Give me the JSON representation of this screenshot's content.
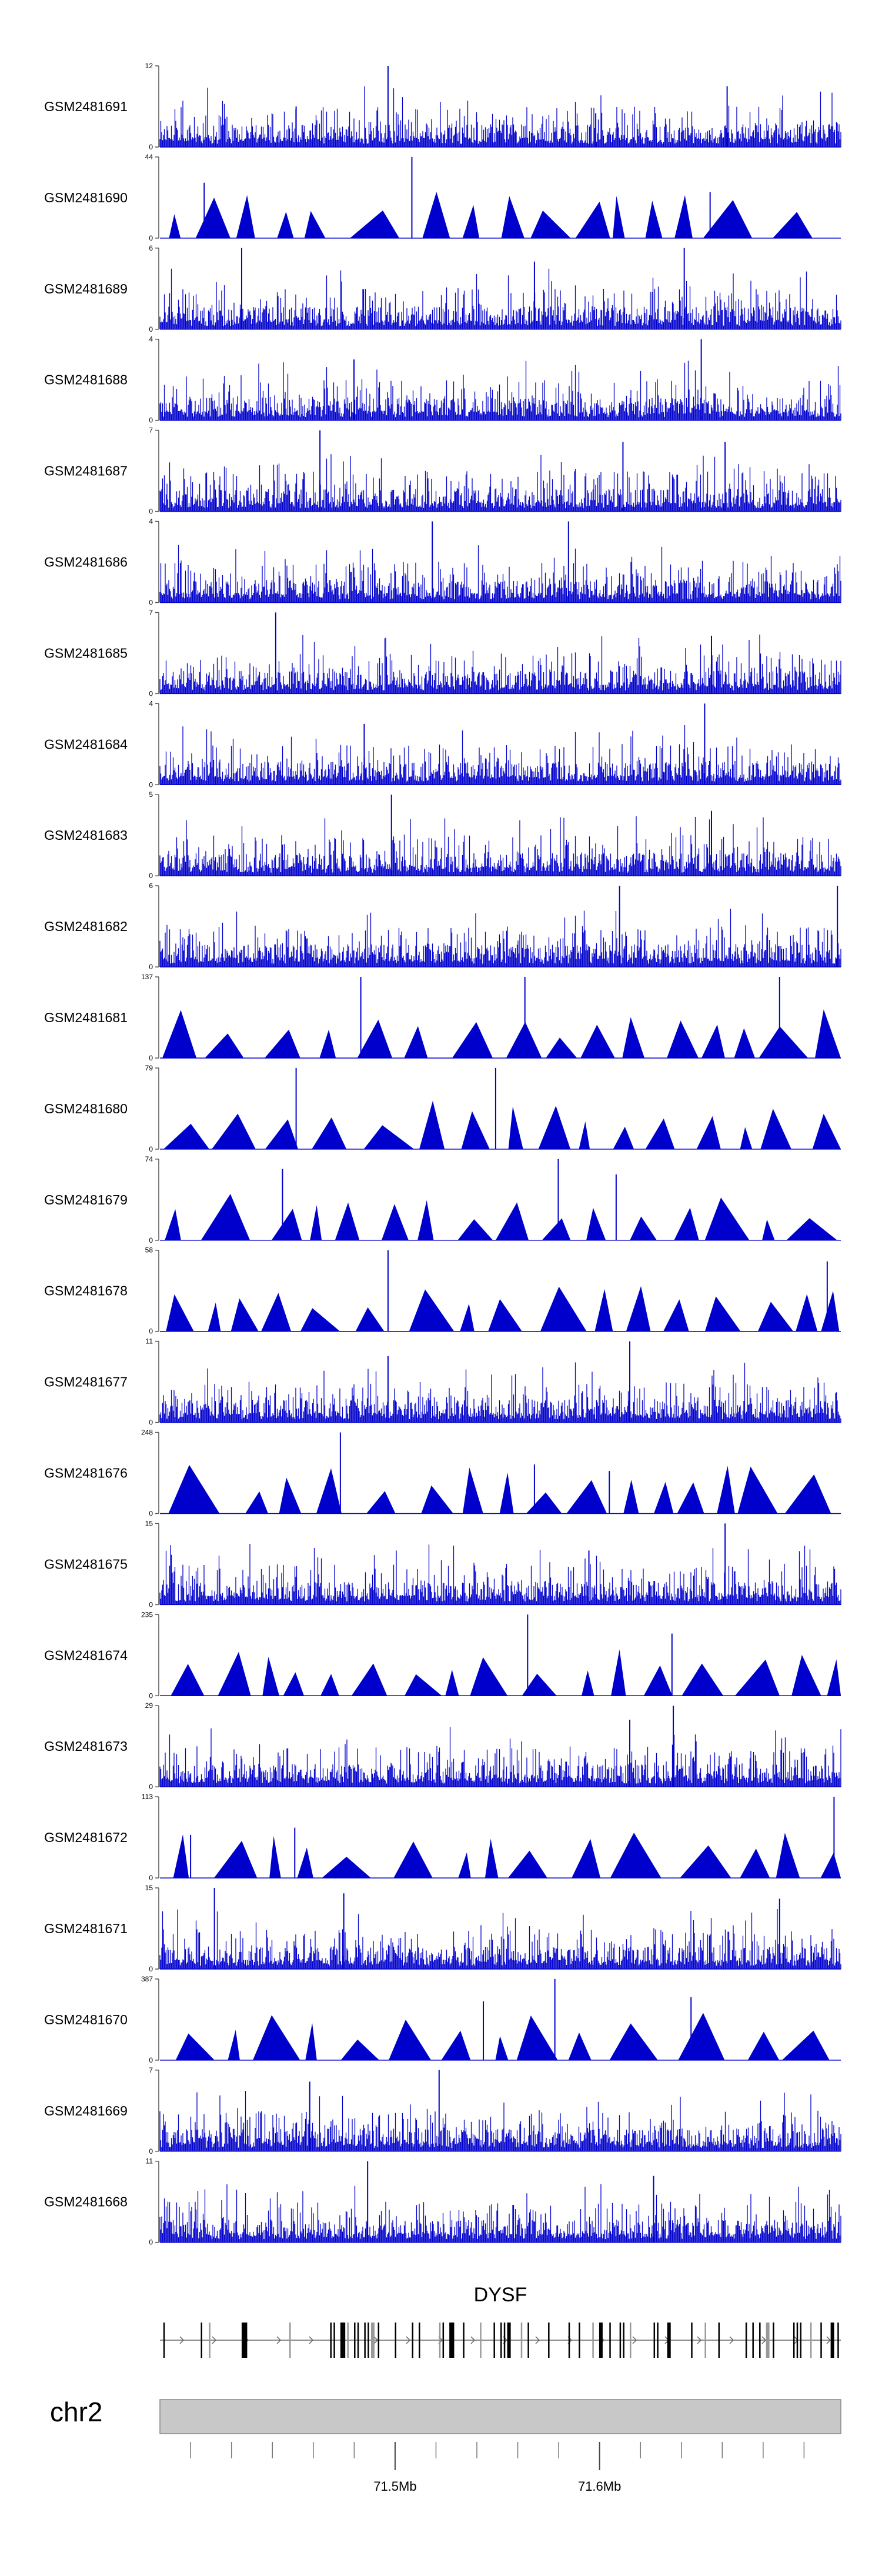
{
  "chart_data": {
    "type": "area",
    "title": "",
    "xlabel": "",
    "ylabel": "",
    "chromosome": "chr2",
    "gene": "DYSF",
    "region_mb": [
      71.385,
      71.718
    ],
    "x_ticks": [
      "71.5Mb",
      "71.6Mb"
    ],
    "x_tick_values": [
      71.5,
      71.6
    ],
    "colors": {
      "signal": "#0000cc",
      "axis": "#555555",
      "ideogram": "#c8c8c8",
      "exon": "#000000"
    },
    "tracks": [
      {
        "name": "GSM2481691",
        "ymax": 12,
        "ymin": 0,
        "style": "dense",
        "peaks": [
          [
            0.335,
            12
          ],
          [
            0.833,
            9
          ],
          [
            0.2,
            6
          ],
          [
            0.64,
            5
          ]
        ]
      },
      {
        "name": "GSM2481690",
        "ymax": 44,
        "ymin": 0,
        "style": "triangles",
        "peaks": [
          [
            0.37,
            44
          ],
          [
            0.065,
            30
          ],
          [
            0.808,
            25
          ]
        ]
      },
      {
        "name": "GSM2481689",
        "ymax": 6,
        "ymin": 0,
        "style": "dense",
        "peaks": [
          [
            0.12,
            6
          ],
          [
            0.55,
            5
          ],
          [
            0.77,
            6
          ]
        ]
      },
      {
        "name": "GSM2481688",
        "ymax": 4,
        "ymin": 0,
        "style": "dense",
        "peaks": [
          [
            0.795,
            4
          ],
          [
            0.285,
            3
          ]
        ]
      },
      {
        "name": "GSM2481687",
        "ymax": 7,
        "ymin": 0,
        "style": "dense",
        "peaks": [
          [
            0.235,
            7
          ],
          [
            0.68,
            6
          ],
          [
            0.83,
            6
          ]
        ]
      },
      {
        "name": "GSM2481686",
        "ymax": 4,
        "ymin": 0,
        "style": "dense",
        "peaks": [
          [
            0.4,
            4
          ],
          [
            0.6,
            4
          ]
        ]
      },
      {
        "name": "GSM2481685",
        "ymax": 7,
        "ymin": 0,
        "style": "dense",
        "peaks": [
          [
            0.17,
            7
          ],
          [
            0.81,
            5
          ]
        ]
      },
      {
        "name": "GSM2481684",
        "ymax": 4,
        "ymin": 0,
        "style": "dense",
        "peaks": [
          [
            0.8,
            4
          ],
          [
            0.3,
            3
          ]
        ]
      },
      {
        "name": "GSM2481683",
        "ymax": 5,
        "ymin": 0,
        "style": "dense",
        "peaks": [
          [
            0.34,
            5
          ],
          [
            0.81,
            4
          ]
        ]
      },
      {
        "name": "GSM2481682",
        "ymax": 6,
        "ymin": 0,
        "style": "dense",
        "peaks": [
          [
            0.675,
            6
          ],
          [
            0.995,
            6
          ]
        ]
      },
      {
        "name": "GSM2481681",
        "ymax": 137,
        "ymin": 0,
        "style": "triangles",
        "peaks": [
          [
            0.295,
            137
          ],
          [
            0.536,
            137
          ],
          [
            0.91,
            137
          ]
        ]
      },
      {
        "name": "GSM2481680",
        "ymax": 79,
        "ymin": 0,
        "style": "triangles",
        "peaks": [
          [
            0.2,
            79
          ],
          [
            0.493,
            79
          ]
        ]
      },
      {
        "name": "GSM2481679",
        "ymax": 74,
        "ymin": 0,
        "style": "triangles",
        "peaks": [
          [
            0.585,
            74
          ],
          [
            0.67,
            60
          ],
          [
            0.18,
            65
          ]
        ]
      },
      {
        "name": "GSM2481678",
        "ymax": 58,
        "ymin": 0,
        "style": "triangles",
        "peaks": [
          [
            0.335,
            58
          ],
          [
            0.98,
            50
          ]
        ]
      },
      {
        "name": "GSM2481677",
        "ymax": 11,
        "ymin": 0,
        "style": "dense",
        "peaks": [
          [
            0.69,
            11
          ],
          [
            0.335,
            9
          ]
        ]
      },
      {
        "name": "GSM2481676",
        "ymax": 248,
        "ymin": 0,
        "style": "triangles",
        "peaks": [
          [
            0.265,
            248
          ],
          [
            0.55,
            150
          ],
          [
            0.66,
            130
          ]
        ]
      },
      {
        "name": "GSM2481675",
        "ymax": 15,
        "ymin": 0,
        "style": "dense",
        "peaks": [
          [
            0.83,
            15
          ],
          [
            0.63,
            10
          ]
        ]
      },
      {
        "name": "GSM2481674",
        "ymax": 235,
        "ymin": 0,
        "style": "triangles",
        "peaks": [
          [
            0.54,
            235
          ],
          [
            0.752,
            180
          ]
        ]
      },
      {
        "name": "GSM2481673",
        "ymax": 29,
        "ymin": 0,
        "style": "dense",
        "peaks": [
          [
            0.754,
            29
          ],
          [
            0.69,
            24
          ]
        ]
      },
      {
        "name": "GSM2481672",
        "ymax": 113,
        "ymin": 0,
        "style": "triangles",
        "peaks": [
          [
            0.99,
            113
          ],
          [
            0.198,
            70
          ],
          [
            0.045,
            60
          ]
        ]
      },
      {
        "name": "GSM2481671",
        "ymax": 15,
        "ymin": 0,
        "style": "dense",
        "peaks": [
          [
            0.08,
            15
          ],
          [
            0.27,
            14
          ],
          [
            0.91,
            13
          ]
        ]
      },
      {
        "name": "GSM2481670",
        "ymax": 387,
        "ymin": 0,
        "style": "triangles",
        "peaks": [
          [
            0.58,
            387
          ],
          [
            0.78,
            300
          ],
          [
            0.475,
            280
          ]
        ]
      },
      {
        "name": "GSM2481669",
        "ymax": 7,
        "ymin": 0,
        "style": "dense",
        "peaks": [
          [
            0.41,
            7
          ],
          [
            0.22,
            6
          ]
        ]
      },
      {
        "name": "GSM2481668",
        "ymax": 11,
        "ymin": 0,
        "style": "dense",
        "peaks": [
          [
            0.305,
            11
          ],
          [
            0.725,
            9
          ]
        ]
      }
    ],
    "exons": [
      0.005,
      0.06,
      0.072,
      0.12,
      0.122,
      0.124,
      0.126,
      0.19,
      0.25,
      0.255,
      0.265,
      0.27,
      0.275,
      0.285,
      0.29,
      0.3,
      0.305,
      0.31,
      0.32,
      0.345,
      0.37,
      0.38,
      0.41,
      0.415,
      0.425,
      0.43,
      0.445,
      0.47,
      0.49,
      0.5,
      0.505,
      0.51,
      0.53,
      0.54,
      0.57,
      0.6,
      0.615,
      0.635,
      0.645,
      0.66,
      0.675,
      0.68,
      0.69,
      0.725,
      0.73,
      0.745,
      0.78,
      0.8,
      0.82,
      0.86,
      0.87,
      0.88,
      0.89,
      0.9,
      0.93,
      0.935,
      0.94,
      0.955,
      0.97,
      0.985,
      0.995
    ]
  }
}
